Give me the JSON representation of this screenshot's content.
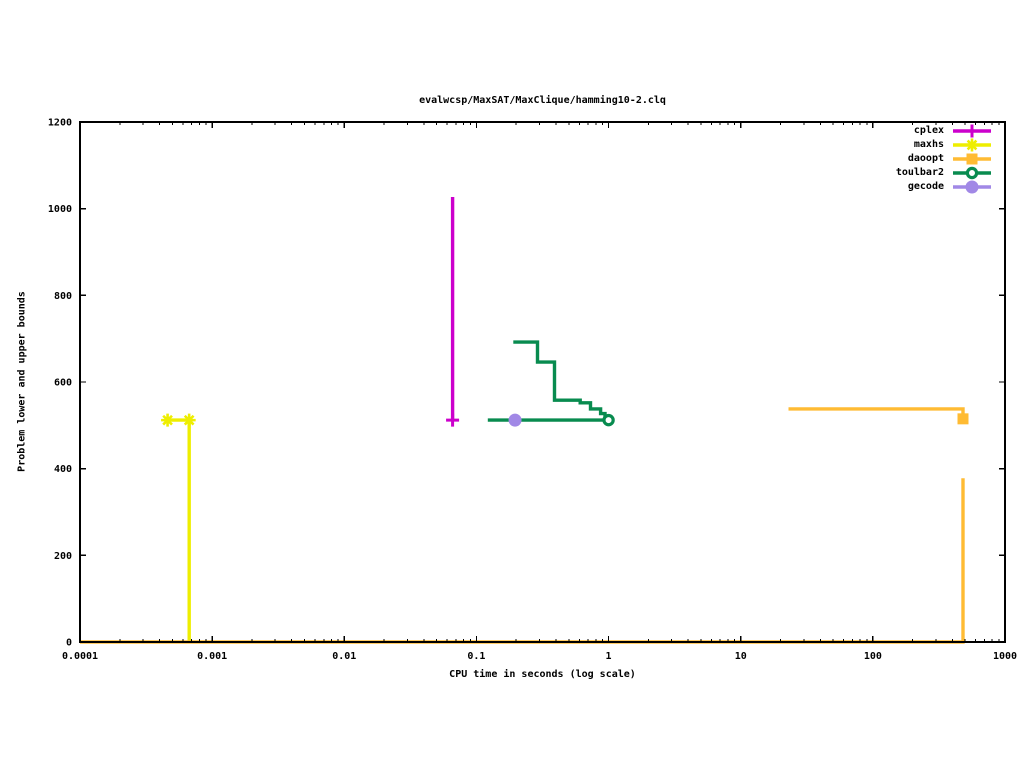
{
  "page": {
    "background": "#ffffff",
    "text_color": "#000000"
  },
  "chart_data": {
    "type": "line",
    "title": "evalwcsp/MaxSAT/MaxClique/hamming10-2.clq",
    "xlabel": "CPU time in seconds (log scale)",
    "ylabel": "Problem lower and upper bounds",
    "x_scale": "log",
    "xlim": [
      0.0001,
      1000
    ],
    "ylim": [
      0,
      1200
    ],
    "x_tick_labels": [
      "0.0001",
      "0.001",
      "0.01",
      "0.1",
      "1",
      "10",
      "100",
      "1000"
    ],
    "x_tick_values": [
      0.0001,
      0.001,
      0.01,
      0.1,
      1,
      10,
      100,
      1000
    ],
    "y_tick_values": [
      0,
      200,
      400,
      600,
      800,
      1000,
      1200
    ],
    "grid": false,
    "legend_position": "top-right-inside",
    "series": [
      {
        "name": "cplex",
        "color": "#cc00cc",
        "marker": "plus",
        "segments": [
          [
            [
              0.066,
              1027
            ],
            [
              0.066,
              512
            ]
          ]
        ],
        "markers": [
          [
            0.066,
            512
          ]
        ]
      },
      {
        "name": "maxhs",
        "color": "#eeee00",
        "marker": "asterisk",
        "segments": [
          [
            [
              0.00046,
              512
            ],
            [
              0.00067,
              512
            ],
            [
              0.00067,
              0
            ]
          ]
        ],
        "markers": [
          [
            0.00046,
            512
          ],
          [
            0.00067,
            512
          ]
        ]
      },
      {
        "name": "daoopt",
        "color": "#ffbb33",
        "marker": "filled-square",
        "segments": [
          [
            [
              23,
              538
            ],
            [
              481,
              538
            ],
            [
              481,
              515
            ]
          ],
          [
            [
              0.0001,
              0
            ],
            [
              481,
              0
            ],
            [
              481,
              378
            ]
          ]
        ],
        "markers": [
          [
            481,
            515
          ]
        ]
      },
      {
        "name": "toulbar2",
        "color": "#088b4f",
        "marker": "open-circle",
        "segments": [
          [
            [
              0.19,
              692
            ],
            [
              0.29,
              692
            ],
            [
              0.29,
              646
            ],
            [
              0.39,
              646
            ],
            [
              0.39,
              558
            ],
            [
              0.61,
              558
            ],
            [
              0.61,
              552
            ],
            [
              0.73,
              552
            ],
            [
              0.73,
              538
            ],
            [
              0.87,
              538
            ],
            [
              0.87,
              527
            ],
            [
              0.94,
              527
            ],
            [
              0.94,
              512
            ],
            [
              1.0,
              512
            ]
          ],
          [
            [
              0.122,
              512
            ],
            [
              1.0,
              512
            ]
          ]
        ],
        "markers": [
          [
            1.0,
            512
          ]
        ]
      },
      {
        "name": "gecode",
        "color": "#a188e6",
        "marker": "filled-circle",
        "segments": [],
        "markers": [
          [
            0.196,
            512
          ]
        ]
      }
    ]
  }
}
